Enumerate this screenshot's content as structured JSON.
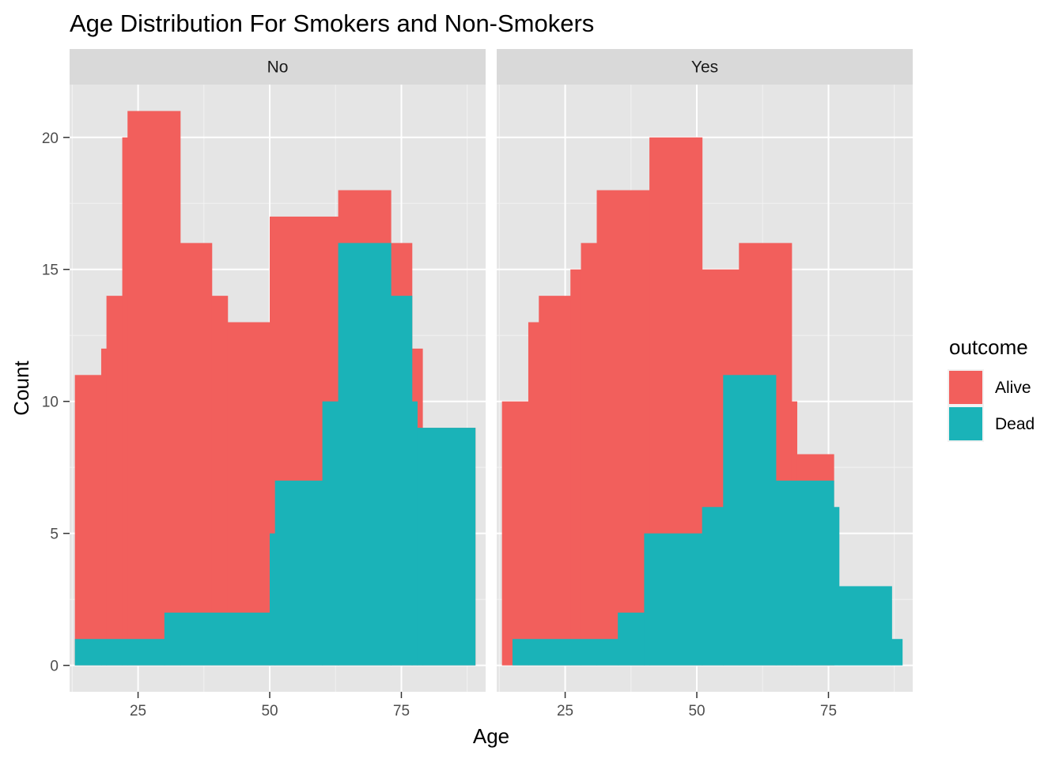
{
  "chart_data": {
    "type": "histogram",
    "title": "Age Distribution For Smokers and Non-Smokers",
    "xlabel": "Age",
    "ylabel": "Count",
    "xlim": [
      12,
      91
    ],
    "ylim": [
      -1,
      22
    ],
    "x_ticks": [
      25,
      50,
      75
    ],
    "y_ticks": [
      0,
      5,
      10,
      15,
      20
    ],
    "stacking": "overlay",
    "grid": true,
    "legend": {
      "title": "outcome",
      "position": "right",
      "entries": [
        {
          "name": "Alive",
          "color": "#f25f5c"
        },
        {
          "name": "Dead",
          "color": "#1ab3b8"
        }
      ]
    },
    "panels": [
      {
        "label": "No",
        "series": [
          {
            "name": "Alive",
            "color": "#f25f5c",
            "bins": [
              {
                "x0": 13,
                "x1": 18,
                "y": 11
              },
              {
                "x0": 18,
                "x1": 19,
                "y": 12
              },
              {
                "x0": 19,
                "x1": 22,
                "y": 14
              },
              {
                "x0": 22,
                "x1": 23,
                "y": 20
              },
              {
                "x0": 23,
                "x1": 33,
                "y": 21
              },
              {
                "x0": 33,
                "x1": 39,
                "y": 16
              },
              {
                "x0": 39,
                "x1": 42,
                "y": 14
              },
              {
                "x0": 42,
                "x1": 50,
                "y": 13
              },
              {
                "x0": 50,
                "x1": 63,
                "y": 17
              },
              {
                "x0": 63,
                "x1": 73,
                "y": 18
              },
              {
                "x0": 73,
                "x1": 77,
                "y": 16
              },
              {
                "x0": 77,
                "x1": 79,
                "y": 12
              },
              {
                "x0": 79,
                "x1": 89,
                "y": 9
              }
            ]
          },
          {
            "name": "Dead",
            "color": "#1ab3b8",
            "bins": [
              {
                "x0": 13,
                "x1": 30,
                "y": 1
              },
              {
                "x0": 30,
                "x1": 50,
                "y": 2
              },
              {
                "x0": 50,
                "x1": 51,
                "y": 5
              },
              {
                "x0": 51,
                "x1": 60,
                "y": 7
              },
              {
                "x0": 60,
                "x1": 63,
                "y": 10
              },
              {
                "x0": 63,
                "x1": 73,
                "y": 16
              },
              {
                "x0": 73,
                "x1": 77,
                "y": 14
              },
              {
                "x0": 77,
                "x1": 78,
                "y": 10
              },
              {
                "x0": 78,
                "x1": 89,
                "y": 9
              }
            ]
          }
        ]
      },
      {
        "label": "Yes",
        "series": [
          {
            "name": "Alive",
            "color": "#f25f5c",
            "bins": [
              {
                "x0": 13,
                "x1": 18,
                "y": 10
              },
              {
                "x0": 18,
                "x1": 20,
                "y": 13
              },
              {
                "x0": 20,
                "x1": 26,
                "y": 14
              },
              {
                "x0": 26,
                "x1": 28,
                "y": 15
              },
              {
                "x0": 28,
                "x1": 31,
                "y": 16
              },
              {
                "x0": 31,
                "x1": 41,
                "y": 18
              },
              {
                "x0": 41,
                "x1": 51,
                "y": 20
              },
              {
                "x0": 51,
                "x1": 58,
                "y": 15
              },
              {
                "x0": 58,
                "x1": 68,
                "y": 16
              },
              {
                "x0": 68,
                "x1": 69,
                "y": 10
              },
              {
                "x0": 69,
                "x1": 76,
                "y": 8
              }
            ]
          },
          {
            "name": "Dead",
            "color": "#1ab3b8",
            "bins": [
              {
                "x0": 15,
                "x1": 35,
                "y": 1
              },
              {
                "x0": 35,
                "x1": 40,
                "y": 2
              },
              {
                "x0": 40,
                "x1": 51,
                "y": 5
              },
              {
                "x0": 51,
                "x1": 55,
                "y": 6
              },
              {
                "x0": 55,
                "x1": 65,
                "y": 11
              },
              {
                "x0": 65,
                "x1": 76,
                "y": 7
              },
              {
                "x0": 76,
                "x1": 77,
                "y": 6
              },
              {
                "x0": 77,
                "x1": 87,
                "y": 3
              },
              {
                "x0": 87,
                "x1": 89,
                "y": 1
              }
            ]
          }
        ]
      }
    ]
  }
}
